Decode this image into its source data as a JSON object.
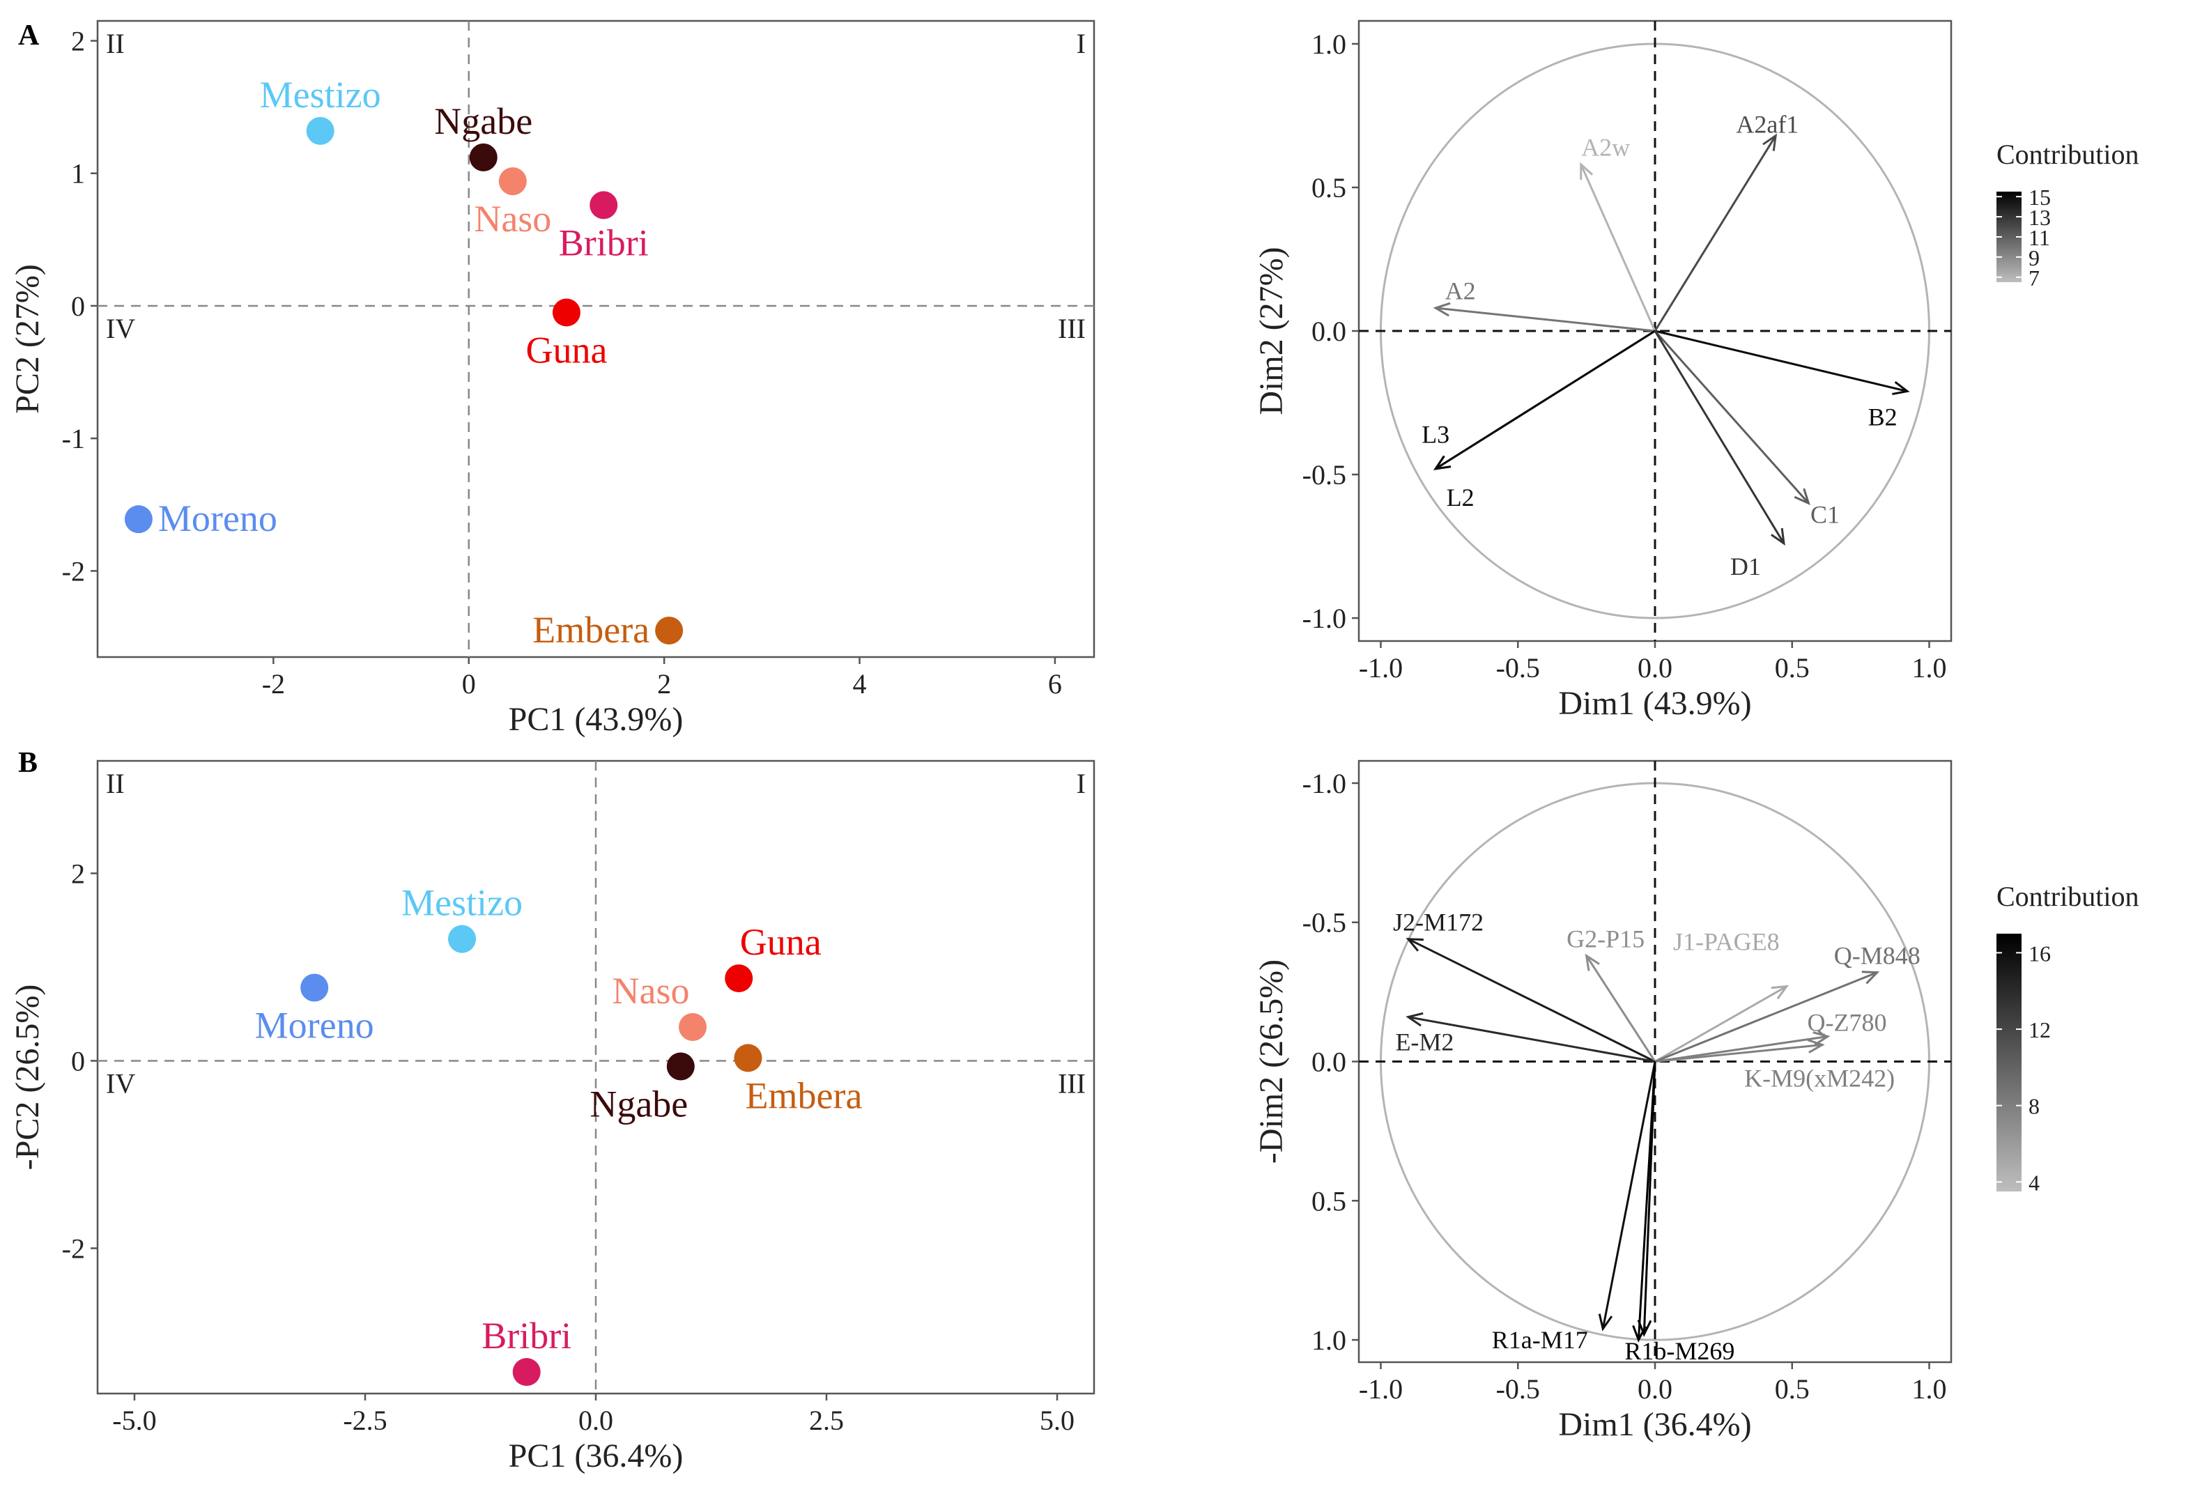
{
  "panel_labels": [
    "A",
    "B"
  ],
  "chart_data": [
    {
      "id": "A-scatter",
      "type": "scatter",
      "panel": "A",
      "title": "",
      "xlabel": "PC1 (43.9%)",
      "ylabel": "PC2 (27%)",
      "xlim": [
        -3.8,
        6.4
      ],
      "ylim": [
        -2.65,
        2.15
      ],
      "xticks": [
        -2,
        0,
        2,
        4,
        6
      ],
      "yticks": [
        -2,
        -1,
        0,
        1,
        2
      ],
      "quadrant_labels": {
        "top_left": "II",
        "top_right": "I",
        "bottom_left": "IV",
        "bottom_right": "III"
      },
      "points": [
        {
          "label": "Mestizo",
          "x": -1.52,
          "y": 1.32,
          "color": "#5bc8f5",
          "label_pos": "above"
        },
        {
          "label": "Ngabe",
          "x": 0.15,
          "y": 1.12,
          "color": "#3b0a0a",
          "label_pos": "above"
        },
        {
          "label": "Naso",
          "x": 0.45,
          "y": 0.94,
          "color": "#f4836b",
          "label_pos": "below"
        },
        {
          "label": "Bribri",
          "x": 1.38,
          "y": 0.76,
          "color": "#d81b60",
          "label_pos": "below"
        },
        {
          "label": "Guna",
          "x": 1.0,
          "y": -0.05,
          "color": "#ee0000",
          "label_pos": "below"
        },
        {
          "label": "Moreno",
          "x": -3.38,
          "y": -1.61,
          "color": "#5b8def",
          "label_pos": "right"
        },
        {
          "label": "Embera",
          "x": 2.05,
          "y": -2.45,
          "color": "#c65d10",
          "label_pos": "left"
        }
      ]
    },
    {
      "id": "A-loadings",
      "type": "scatter",
      "subtype": "variable-correlation-circle",
      "panel": "A",
      "title": "",
      "xlabel": "Dim1 (43.9%)",
      "ylabel": "Dim2 (27%)",
      "xlim": [
        -1.08,
        1.08
      ],
      "ylim": [
        -1.08,
        1.08
      ],
      "y_reversed": false,
      "xticks": [
        -1.0,
        -0.5,
        0.0,
        0.5,
        1.0
      ],
      "yticks": [
        -1.0,
        -0.5,
        0.0,
        0.5,
        1.0
      ],
      "xtick_labels": [
        "-1.0",
        "-0.5",
        "0.0",
        "0.5",
        "1.0"
      ],
      "ytick_labels": [
        "-1.0",
        "-0.5",
        "0.0",
        "0.5",
        "1.0"
      ],
      "legend": {
        "title": "Contribution",
        "ticks": [
          15,
          13,
          11,
          9,
          7
        ],
        "min": 6.5,
        "max": 15.5
      },
      "arrows": [
        {
          "label": "A2af1",
          "x": 0.44,
          "y": 0.68,
          "contrib": 12,
          "lx": 0.41,
          "ly": 0.72
        },
        {
          "label": "A2w",
          "x": -0.27,
          "y": 0.58,
          "contrib": 7,
          "lx": -0.18,
          "ly": 0.64
        },
        {
          "label": "A2",
          "x": -0.8,
          "y": 0.08,
          "contrib": 10,
          "lx": -0.71,
          "ly": 0.14
        },
        {
          "label": "B2",
          "x": 0.92,
          "y": -0.21,
          "contrib": 15,
          "lx": 0.83,
          "ly": -0.3
        },
        {
          "label": "L3",
          "x": -0.8,
          "y": -0.48,
          "contrib": 15,
          "lx": -0.8,
          "ly": -0.36
        },
        {
          "label": "L2",
          "x": -0.8,
          "y": -0.48,
          "contrib": 15,
          "lx": -0.71,
          "ly": -0.58
        },
        {
          "label": "C1",
          "x": 0.56,
          "y": -0.6,
          "contrib": 11,
          "lx": 0.62,
          "ly": -0.64
        },
        {
          "label": "D1",
          "x": 0.47,
          "y": -0.74,
          "contrib": 13,
          "lx": 0.33,
          "ly": -0.82
        }
      ]
    },
    {
      "id": "B-scatter",
      "type": "scatter",
      "panel": "B",
      "title": "",
      "xlabel": "PC1 (36.4%)",
      "ylabel": "-PC2 (26.5%)",
      "xlim": [
        -5.4,
        5.4
      ],
      "ylim": [
        -3.55,
        3.2
      ],
      "xticks": [
        -5.0,
        -2.5,
        0.0,
        2.5,
        5.0
      ],
      "xtick_labels": [
        "-5.0",
        "-2.5",
        "0.0",
        "2.5",
        "5.0"
      ],
      "yticks": [
        -2,
        0,
        2
      ],
      "quadrant_labels": {
        "top_left": "II",
        "top_right": "I",
        "bottom_left": "IV",
        "bottom_right": "III"
      },
      "points": [
        {
          "label": "Mestizo",
          "x": -1.45,
          "y": 1.3,
          "color": "#5bc8f5",
          "label_pos": "above"
        },
        {
          "label": "Moreno",
          "x": -3.05,
          "y": 0.78,
          "color": "#5b8def",
          "label_pos": "below"
        },
        {
          "label": "Guna",
          "x": 1.55,
          "y": 0.88,
          "color": "#ee0000",
          "label_pos": "above-right"
        },
        {
          "label": "Naso",
          "x": 1.05,
          "y": 0.36,
          "color": "#f4836b",
          "label_pos": "above-left"
        },
        {
          "label": "Ngabe",
          "x": 0.92,
          "y": -0.06,
          "color": "#3b0a0a",
          "label_pos": "below-left"
        },
        {
          "label": "Embera",
          "x": 1.65,
          "y": 0.03,
          "color": "#c65d10",
          "label_pos": "below-right"
        },
        {
          "label": "Bribri",
          "x": -0.75,
          "y": -3.32,
          "color": "#d81b60",
          "label_pos": "above"
        }
      ]
    },
    {
      "id": "B-loadings",
      "type": "scatter",
      "subtype": "variable-correlation-circle",
      "panel": "B",
      "title": "",
      "xlabel": "Dim1 (36.4%)",
      "ylabel": "-Dim2 (26.5%)",
      "xlim": [
        -1.08,
        1.08
      ],
      "ylim": [
        -1.08,
        1.08
      ],
      "y_reversed": true,
      "xticks": [
        -1.0,
        -0.5,
        0.0,
        0.5,
        1.0
      ],
      "yticks": [
        -1.0,
        -0.5,
        0.0,
        0.5,
        1.0
      ],
      "xtick_labels": [
        "-1.0",
        "-0.5",
        "0.0",
        "0.5",
        "1.0"
      ],
      "ytick_labels": [
        "-1.0",
        "-0.5",
        "0.0",
        "0.5",
        "1.0"
      ],
      "legend": {
        "title": "Contribution",
        "ticks": [
          16,
          12,
          8,
          4
        ],
        "min": 3.5,
        "max": 17
      },
      "arrows": [
        {
          "label": "J2-M172",
          "x": -0.9,
          "y": -0.44,
          "contrib": 15,
          "lx": -0.79,
          "ly": -0.5
        },
        {
          "label": "G2-P15",
          "x": -0.25,
          "y": -0.38,
          "contrib": 7,
          "lx": -0.18,
          "ly": -0.44
        },
        {
          "label": "J1-PAGE8",
          "x": 0.48,
          "y": -0.27,
          "contrib": 5,
          "lx": 0.26,
          "ly": -0.43
        },
        {
          "label": "Q-M848",
          "x": 0.81,
          "y": -0.32,
          "contrib": 9,
          "lx": 0.81,
          "ly": -0.38
        },
        {
          "label": "E-M2",
          "x": -0.9,
          "y": -0.16,
          "contrib": 14,
          "lx": -0.84,
          "ly": -0.07
        },
        {
          "label": "Q-Z780",
          "x": 0.63,
          "y": -0.09,
          "contrib": 8,
          "lx": 0.7,
          "ly": -0.14
        },
        {
          "label": "K-M9(xM242)",
          "x": 0.61,
          "y": -0.06,
          "contrib": 8,
          "lx": 0.6,
          "ly": 0.06
        },
        {
          "label": "R1a-M17",
          "x": -0.19,
          "y": 0.96,
          "contrib": 16,
          "lx": -0.42,
          "ly": 1.0
        },
        {
          "label": "R1b-M269",
          "x": -0.04,
          "y": 0.98,
          "contrib": 17,
          "lx": 0.09,
          "ly": 1.04
        },
        {
          "label": "",
          "x": -0.06,
          "y": 1.0,
          "contrib": 17,
          "lx": 0,
          "ly": 0
        }
      ]
    }
  ]
}
